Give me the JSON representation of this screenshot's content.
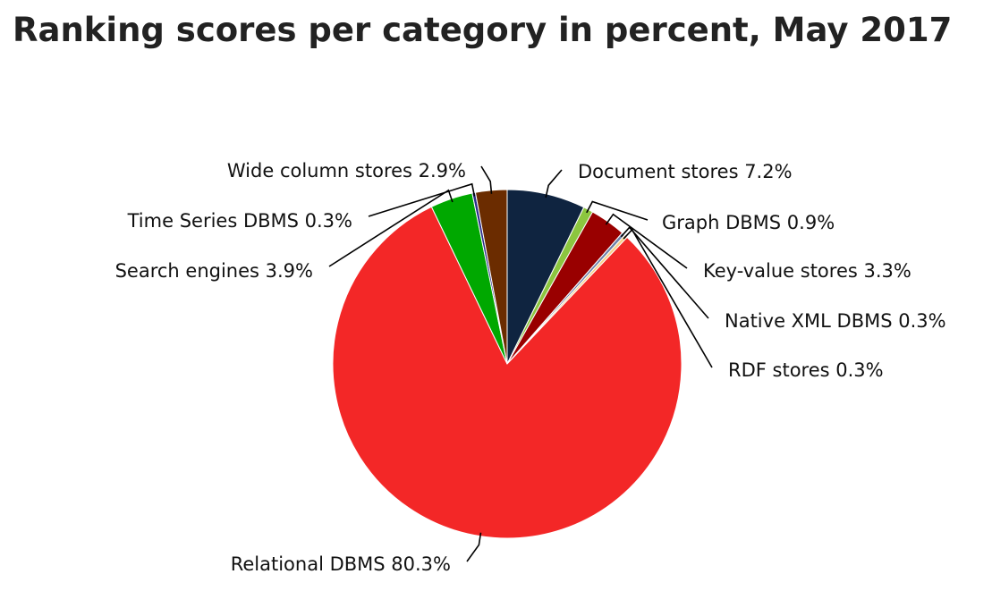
{
  "chart_data": {
    "type": "pie",
    "title": "Ranking scores per category in percent, May 2017",
    "slices": [
      {
        "name": "Document stores",
        "value": 7.2,
        "label": "Document stores 7.2%",
        "color": "#0f2440"
      },
      {
        "name": "Graph DBMS",
        "value": 0.9,
        "label": "Graph DBMS 0.9%",
        "color": "#8cc63f"
      },
      {
        "name": "Key-value stores",
        "value": 3.3,
        "label": "Key-value stores 3.3%",
        "color": "#990000"
      },
      {
        "name": "Native XML DBMS",
        "value": 0.3,
        "label": "Native XML DBMS 0.3%",
        "color": "#6b7fa8"
      },
      {
        "name": "RDF stores",
        "value": 0.3,
        "label": "RDF stores 0.3%",
        "color": "#f5d08a"
      },
      {
        "name": "Relational DBMS",
        "value": 80.3,
        "label": "Relational DBMS 80.3%",
        "color": "#f32727"
      },
      {
        "name": "Search engines",
        "value": 3.9,
        "label": "Search engines 3.9%",
        "color": "#00a800"
      },
      {
        "name": "Time Series DBMS",
        "value": 0.3,
        "label": "Time Series DBMS 0.3%",
        "color": "#2c2c8a"
      },
      {
        "name": "Wide column stores",
        "value": 2.9,
        "label": "Wide column stores 2.9%",
        "color": "#6b2c00"
      }
    ],
    "legend": "none"
  }
}
